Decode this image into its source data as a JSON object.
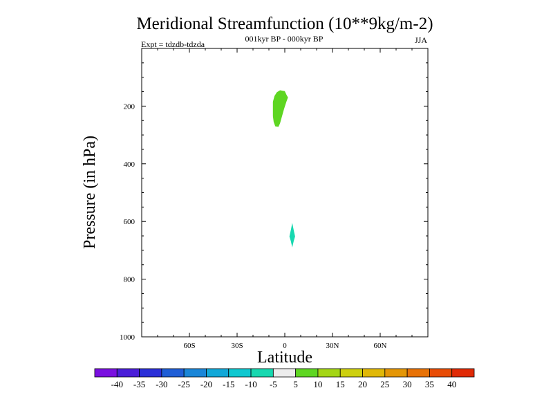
{
  "chart_data": {
    "type": "contour",
    "title": "Meridional Streamfunction (10**9kg/m-2)",
    "subtitle": "001kyr BP - 000kyr BP",
    "experiment": "Expt = tdzdb-tdzda",
    "season": "JJA",
    "xlabel": "Latitude",
    "ylabel": "Pressure (in hPa)",
    "xlim": [
      -90,
      90
    ],
    "ylim": [
      1000,
      0
    ],
    "x_ticks": [
      {
        "value": -60,
        "label": "60S"
      },
      {
        "value": -30,
        "label": "30S"
      },
      {
        "value": 0,
        "label": "0"
      },
      {
        "value": 30,
        "label": "30N"
      },
      {
        "value": 60,
        "label": "60N"
      }
    ],
    "y_ticks": [
      {
        "value": 200,
        "label": "200"
      },
      {
        "value": 400,
        "label": "400"
      },
      {
        "value": 600,
        "label": "600"
      },
      {
        "value": 800,
        "label": "800"
      },
      {
        "value": 1000,
        "label": "1000"
      }
    ],
    "colorbar": {
      "labels": [
        "-40",
        "-35",
        "-30",
        "-25",
        "-20",
        "-15",
        "-10",
        "-5",
        "5",
        "10",
        "15",
        "20",
        "25",
        "30",
        "35",
        "40"
      ],
      "colors": [
        "#7a10e0",
        "#4a1ed8",
        "#2b2fd8",
        "#1f5ed6",
        "#1a86d8",
        "#12a8d8",
        "#10c8d0",
        "#18d8b0",
        "#ececec",
        "#5ed622",
        "#a4d616",
        "#cdd010",
        "#e0b808",
        "#e49606",
        "#e87206",
        "#e84c06",
        "#e02a06"
      ]
    },
    "regions": [
      {
        "name": "positive-cell",
        "category": "5 to 10",
        "color": "#5ed622",
        "points": [
          [
            -3,
            145
          ],
          [
            0,
            148
          ],
          [
            1,
            160
          ],
          [
            2,
            170
          ],
          [
            1,
            185
          ],
          [
            -0.5,
            210
          ],
          [
            -2,
            240
          ],
          [
            -3,
            260
          ],
          [
            -4,
            272
          ],
          [
            -6,
            270
          ],
          [
            -7,
            255
          ],
          [
            -7.5,
            235
          ],
          [
            -7.5,
            210
          ],
          [
            -7.5,
            185
          ],
          [
            -6.5,
            165
          ],
          [
            -5,
            152
          ]
        ]
      },
      {
        "name": "negative-cell",
        "category": "-10 to -5",
        "color": "#18d8b0",
        "points": [
          [
            4.7,
            605
          ],
          [
            5.6,
            630
          ],
          [
            6.5,
            652
          ],
          [
            5.6,
            668
          ],
          [
            4.7,
            690
          ],
          [
            3.8,
            668
          ],
          [
            2.9,
            652
          ],
          [
            3.8,
            630
          ]
        ]
      }
    ]
  }
}
